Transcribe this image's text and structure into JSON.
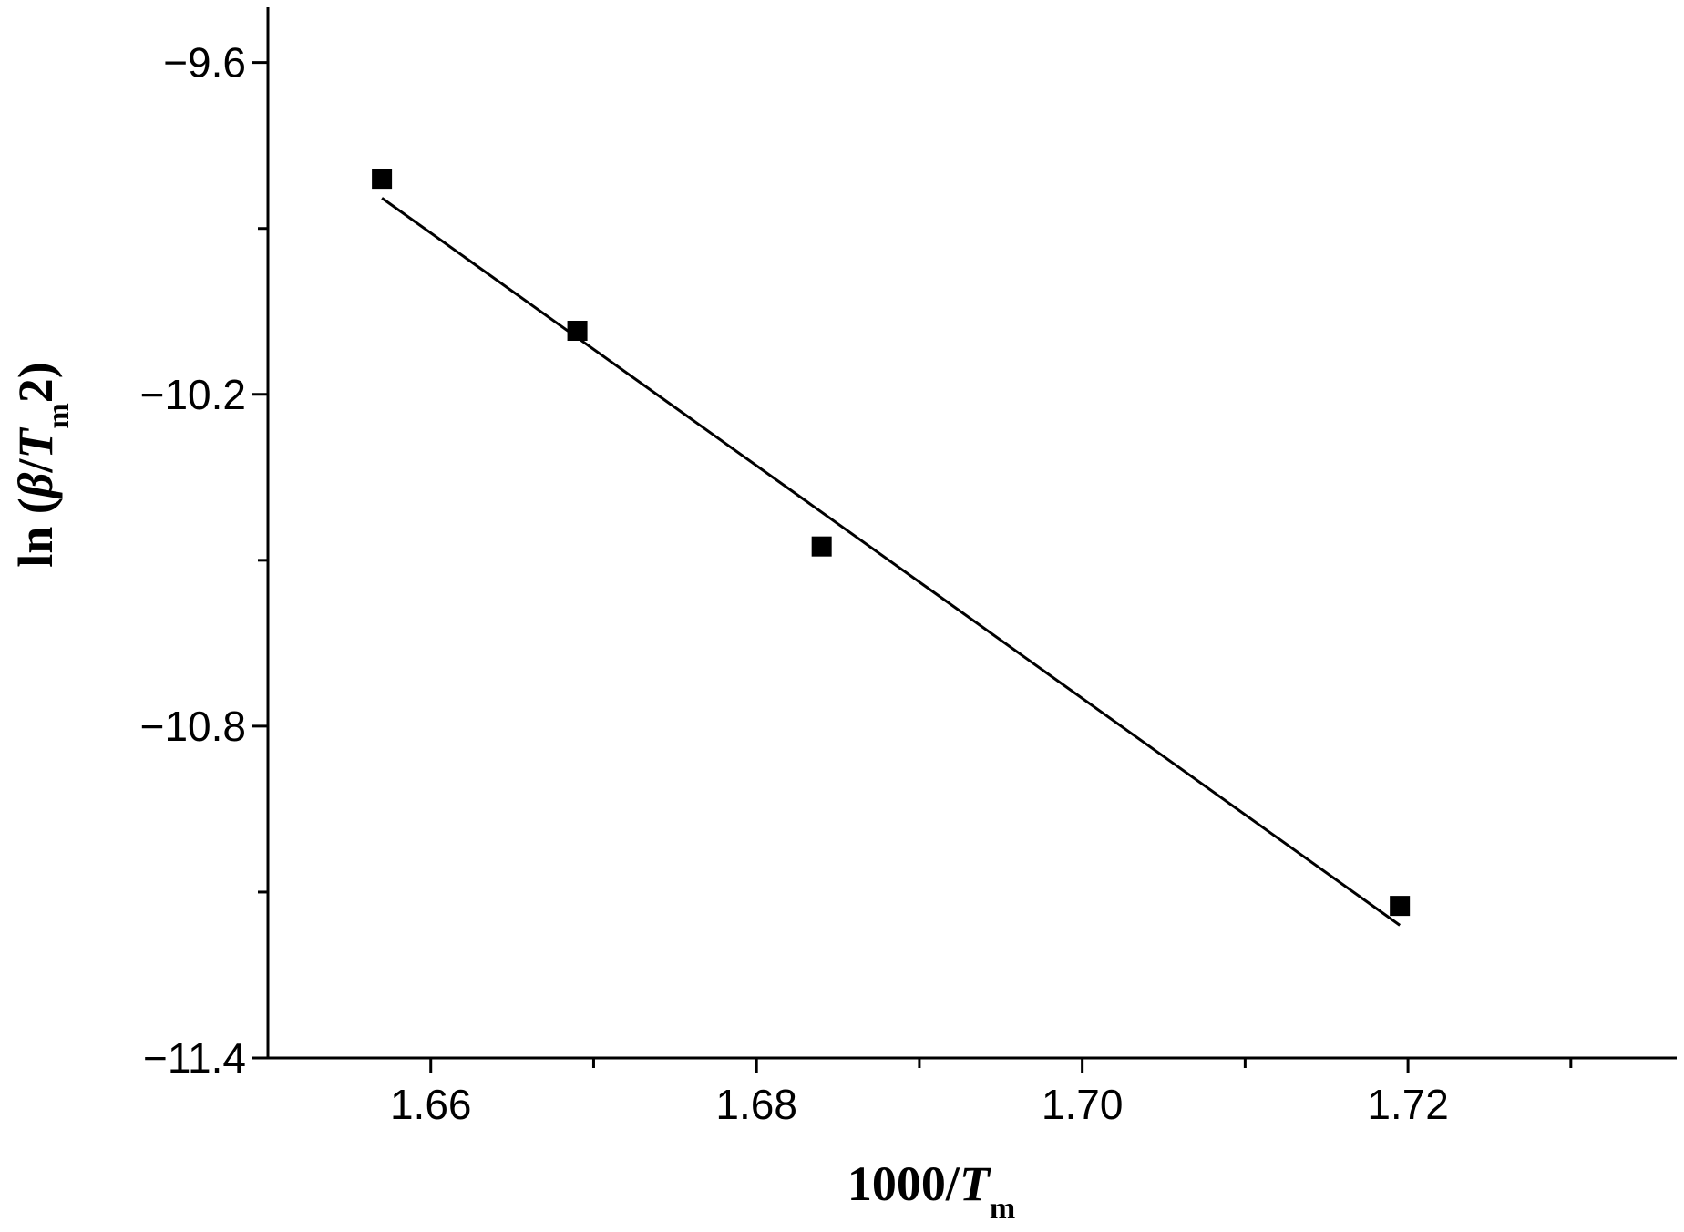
{
  "chart_data": {
    "type": "scatter",
    "xlabel": {
      "base": "1000/",
      "italic": "T",
      "subscript": "m"
    },
    "ylabel": {
      "prefix": "ln (",
      "beta": "β",
      "slash": "/",
      "italic": "T",
      "subscript": "m",
      "suffix": "2)"
    },
    "xlim": [
      1.65,
      1.7365
    ],
    "ylim": [
      -11.4,
      -9.5
    ],
    "x_ticks_major": [
      1.66,
      1.68,
      1.7,
      1.72
    ],
    "x_tick_labels": [
      "1.66",
      "1.68",
      "1.70",
      "1.72"
    ],
    "x_ticks_minor": [
      1.67,
      1.69,
      1.71,
      1.73
    ],
    "y_ticks_major": [
      -9.6,
      -10.2,
      -10.8,
      -11.4
    ],
    "y_tick_labels": [
      "−9.6",
      "−10.2",
      "−10.8",
      "−11.4"
    ],
    "y_ticks_minor": [
      -9.9,
      -10.5,
      -11.1
    ],
    "series": [
      {
        "marker": "square",
        "x": [
          1.657,
          1.669,
          1.684,
          1.7195
        ],
        "y": [
          -9.81,
          -10.085,
          -10.475,
          -11.125
        ]
      }
    ],
    "fit_line": {
      "x": [
        1.657,
        1.7195
      ],
      "y": [
        -9.845,
        -11.16
      ]
    },
    "colors": {
      "marker": "#000000",
      "line": "#000000",
      "axis": "#000000"
    }
  }
}
